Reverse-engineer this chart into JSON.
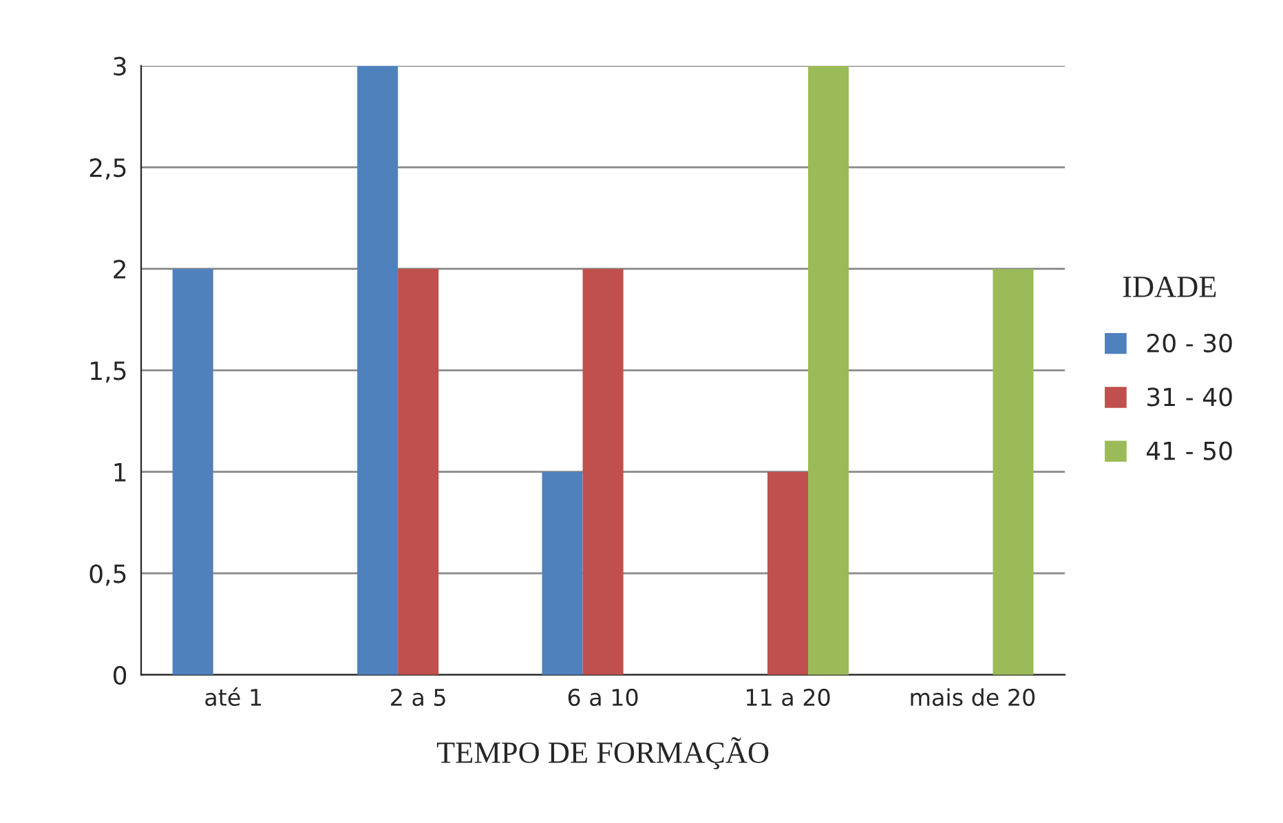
{
  "chart_data": {
    "type": "bar",
    "xlabel": "TEMPO DE FORMAÇÃO",
    "legend_title": "IDADE",
    "categories": [
      "até 1",
      "2 a 5",
      "6 a 10",
      "11 a 20",
      "mais de 20"
    ],
    "series": [
      {
        "name": "20 - 30",
        "color": "#4f81bd",
        "values": [
          2,
          3,
          1,
          null,
          null
        ]
      },
      {
        "name": "31 - 40",
        "color": "#c0504d",
        "values": [
          null,
          2,
          2,
          1,
          null
        ]
      },
      {
        "name": "41 - 50",
        "color": "#9bbb59",
        "values": [
          null,
          null,
          null,
          3,
          2
        ]
      }
    ],
    "ylim": [
      0,
      3
    ],
    "yticks": [
      0,
      {
        "value": 0.5,
        "label": "0,5"
      },
      1,
      {
        "value": 1.5,
        "label": "1,5"
      },
      2,
      {
        "value": 2.5,
        "label": "2,5"
      },
      3
    ],
    "grid": "y",
    "legend": "right"
  }
}
